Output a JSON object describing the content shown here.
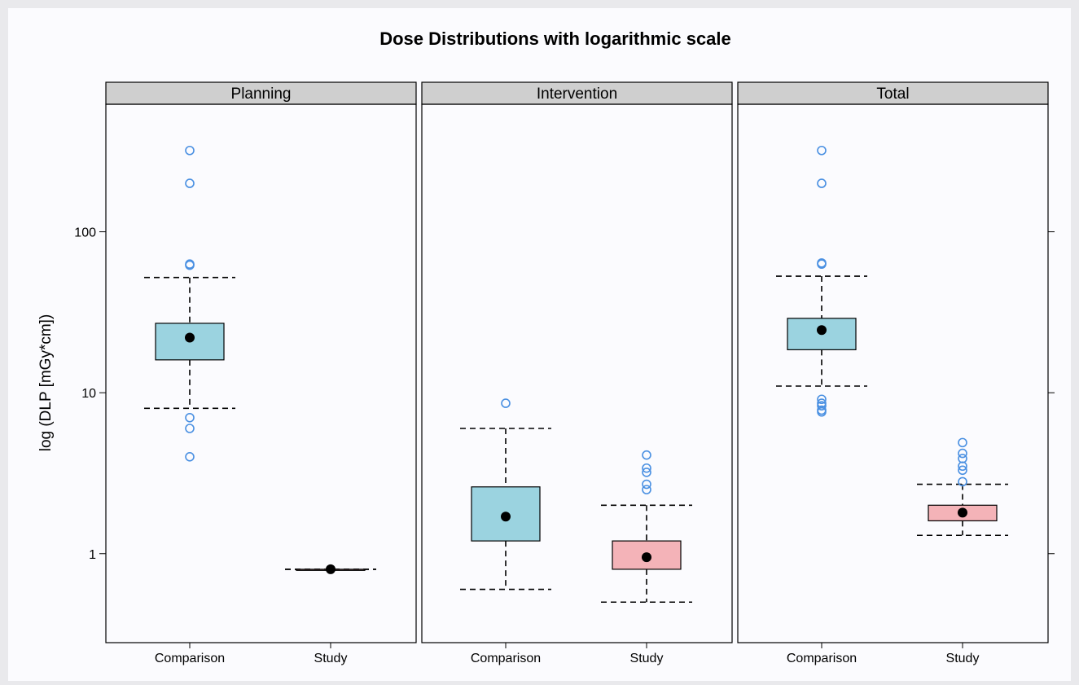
{
  "chart_data": {
    "type": "box",
    "title": "Dose Distributions with logarithmic scale",
    "ylabel": "log (DLP [mGy*cm])",
    "y_scale": "log10",
    "ylim": [
      0.28,
      620
    ],
    "y_ticks": [
      {
        "value": 1,
        "label": "1"
      },
      {
        "value": 10,
        "label": "10"
      },
      {
        "value": 100,
        "label": "100"
      }
    ],
    "categories": [
      "Comparison",
      "Study"
    ],
    "category_colors": {
      "Comparison": "#9bd3e0",
      "Study": "#f4b3b8"
    },
    "outlier_color": "#4a90e2",
    "panels": [
      {
        "name": "Planning",
        "groups": [
          {
            "category": "Comparison",
            "whisker_low": 8,
            "q1": 16,
            "median": 22,
            "q3": 27,
            "whisker_high": 52,
            "outliers": [
              4,
              6,
              7,
              62,
              63,
              200,
              320
            ]
          },
          {
            "category": "Study",
            "whisker_low": 0.8,
            "q1": 0.8,
            "median": 0.8,
            "q3": 0.8,
            "whisker_high": 0.8,
            "outliers": []
          }
        ]
      },
      {
        "name": "Intervention",
        "groups": [
          {
            "category": "Comparison",
            "whisker_low": 0.6,
            "q1": 1.2,
            "median": 1.7,
            "q3": 2.6,
            "whisker_high": 6,
            "outliers": [
              8.6
            ]
          },
          {
            "category": "Study",
            "whisker_low": 0.5,
            "q1": 0.8,
            "median": 0.95,
            "q3": 1.2,
            "whisker_high": 2,
            "outliers": [
              2.5,
              2.7,
              3.2,
              3.4,
              4.1
            ]
          }
        ]
      },
      {
        "name": "Total",
        "groups": [
          {
            "category": "Comparison",
            "whisker_low": 11,
            "q1": 18.5,
            "median": 24.5,
            "q3": 29,
            "whisker_high": 53,
            "outliers": [
              7.6,
              7.8,
              8.3,
              8.6,
              9.1,
              63,
              64,
              200,
              320
            ]
          },
          {
            "category": "Study",
            "whisker_low": 1.3,
            "q1": 1.6,
            "median": 1.8,
            "q3": 2,
            "whisker_high": 2.7,
            "outliers": [
              2.8,
              3.3,
              3.5,
              3.9,
              4.2,
              4.9
            ]
          }
        ]
      }
    ]
  }
}
